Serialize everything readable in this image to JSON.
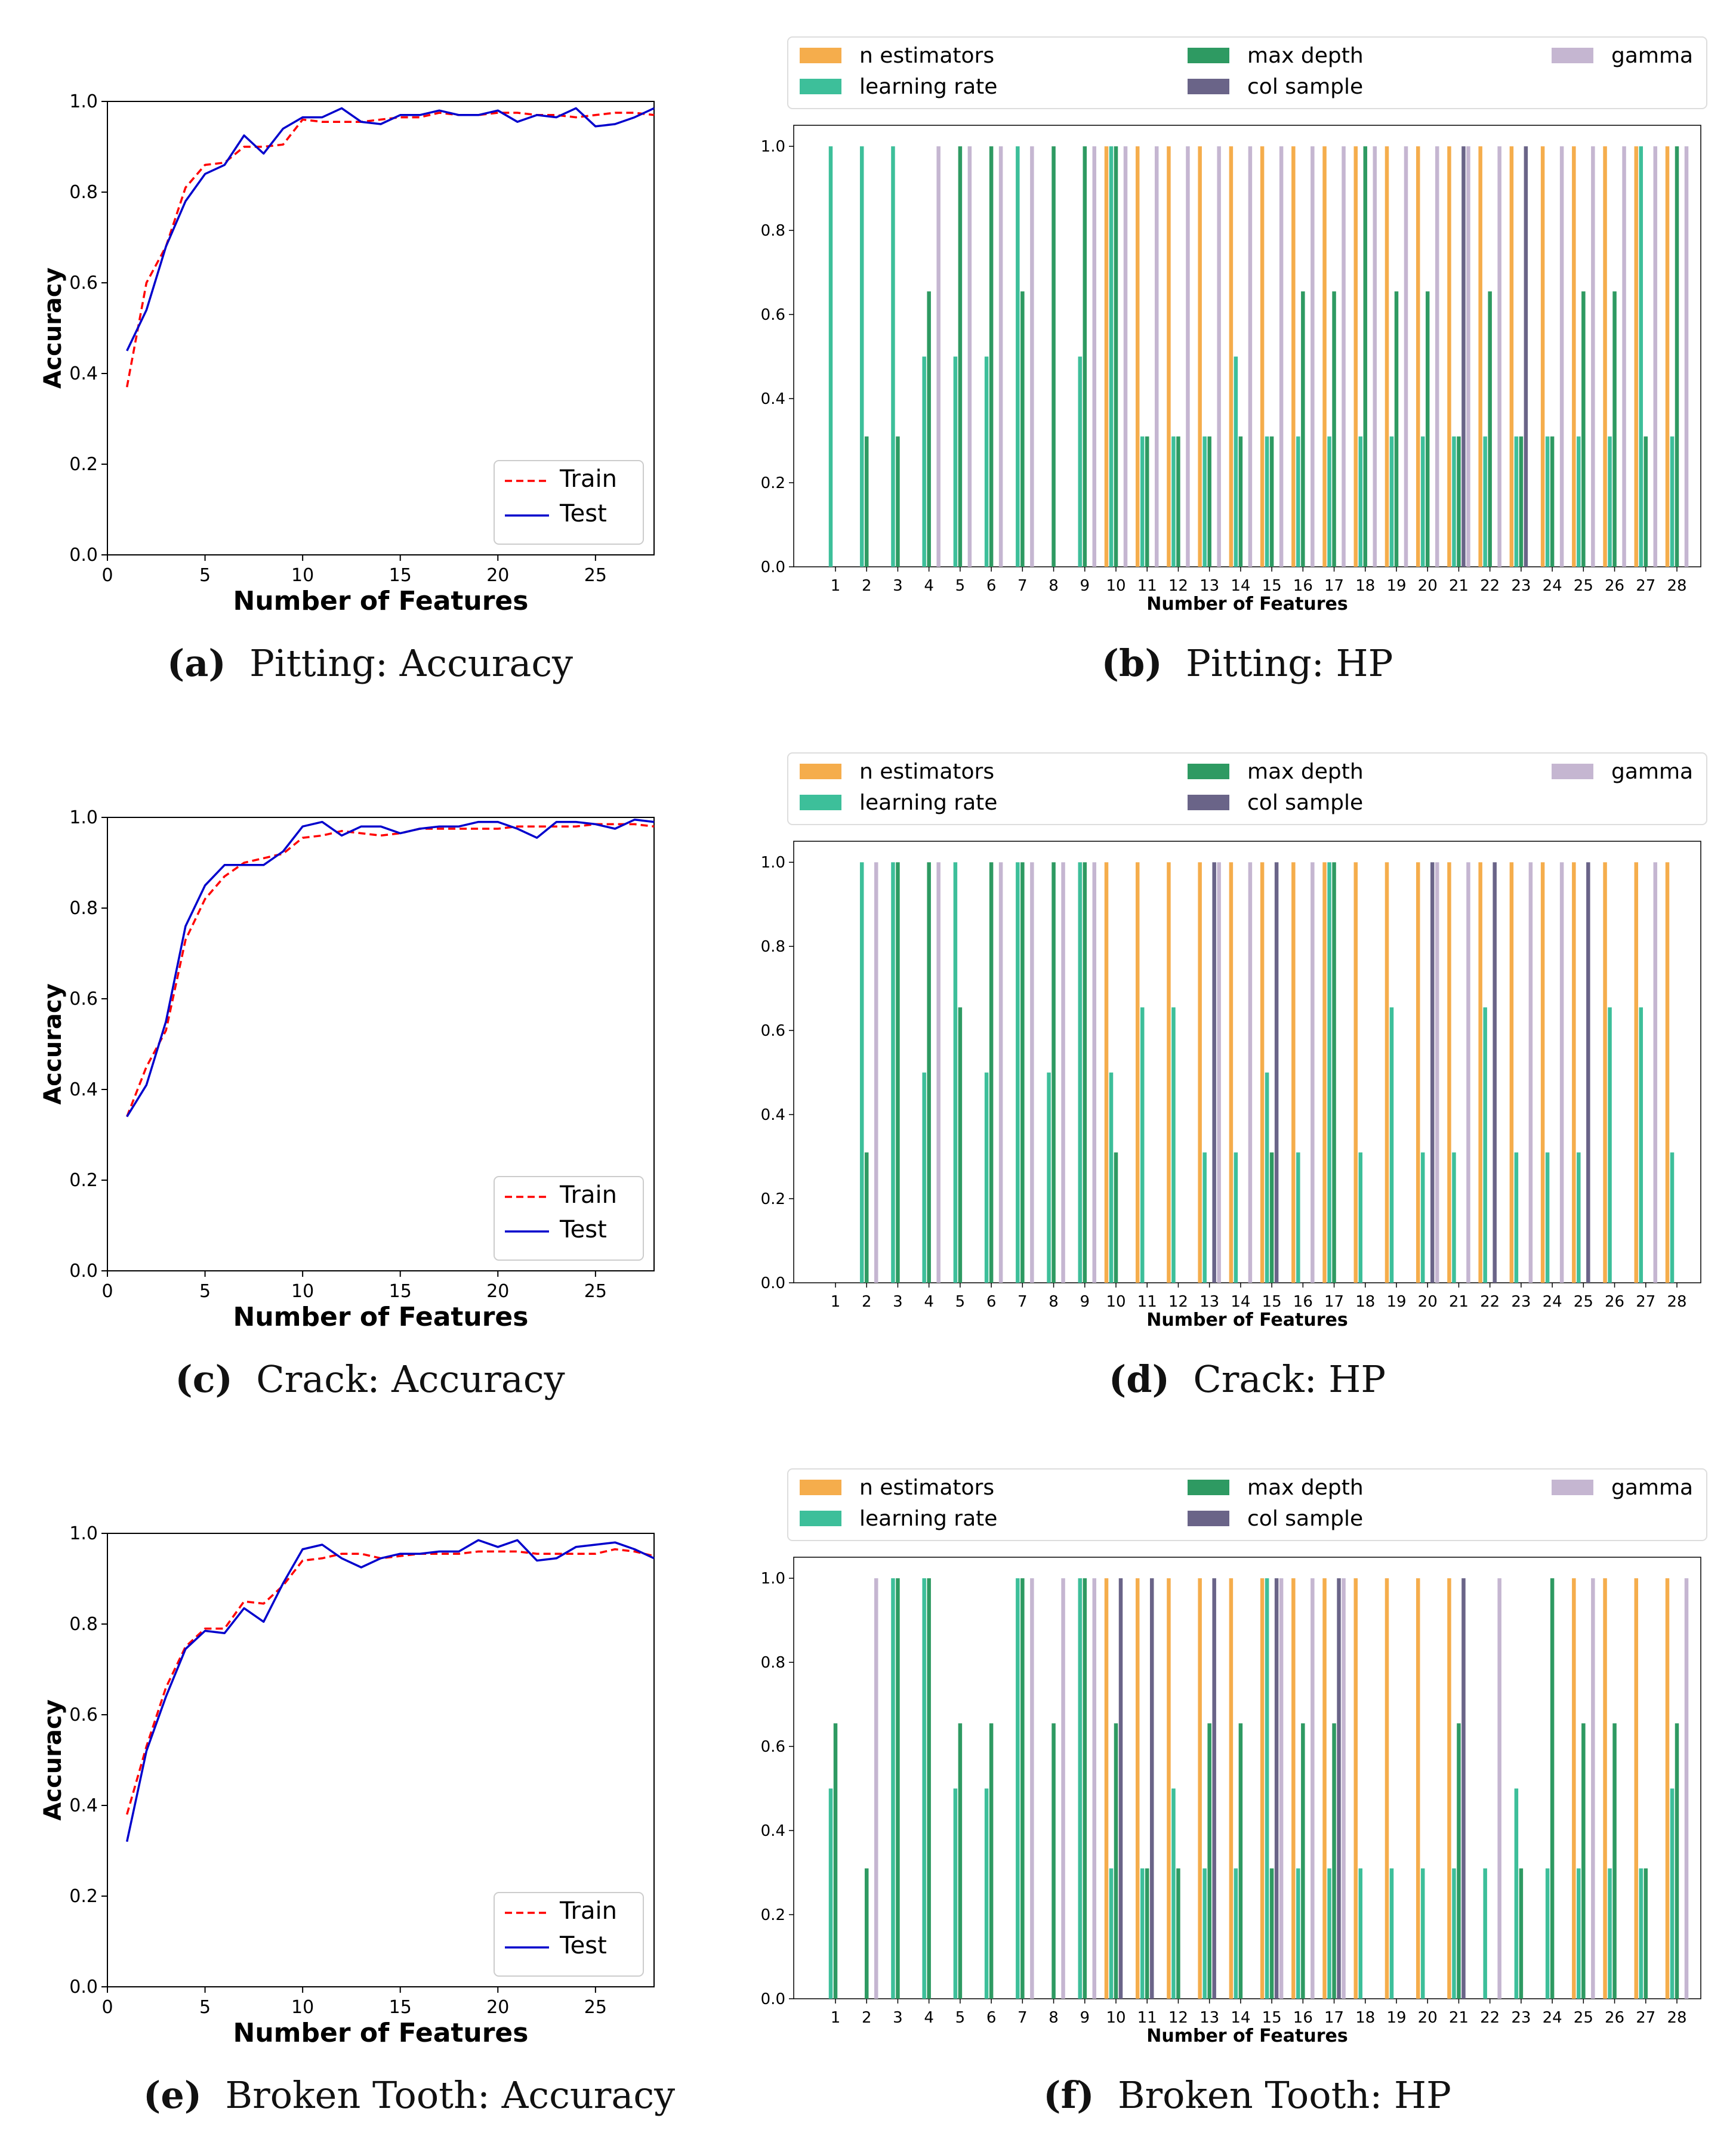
{
  "legend_labels": {
    "train": "Train",
    "test": "Test",
    "n_estimators": "n estimators",
    "learning_rate": "learning rate",
    "max_depth": "max depth",
    "col_sample": "col sample",
    "gamma": "gamma"
  },
  "colors": {
    "train": "#ff0000",
    "test": "#0000cc",
    "n_estimators": "#f5ad4c",
    "learning_rate": "#3dbf9a",
    "max_depth": "#2e9a62",
    "col_sample": "#6a6488",
    "gamma": "#c5b6d1"
  },
  "captions": [
    {
      "letter": "(a)",
      "text": "Pitting: Accuracy"
    },
    {
      "letter": "(b)",
      "text": "Pitting: HP"
    },
    {
      "letter": "(c)",
      "text": "Crack: Accuracy"
    },
    {
      "letter": "(d)",
      "text": "Crack: HP"
    },
    {
      "letter": "(e)",
      "text": "Broken Tooth: Accuracy"
    },
    {
      "letter": "(f)",
      "text": "Broken Tooth: HP"
    }
  ],
  "chart_data": [
    {
      "type": "line",
      "title": "Pitting: Accuracy",
      "xlabel": "Number of Features",
      "ylabel": "Accuracy",
      "xlim": [
        0,
        28
      ],
      "ylim": [
        0,
        1.0
      ],
      "xticks": [
        0,
        5,
        10,
        15,
        20,
        25
      ],
      "yticks": [
        0.0,
        0.2,
        0.4,
        0.6,
        0.8,
        1.0
      ],
      "x": [
        1,
        2,
        3,
        4,
        5,
        6,
        7,
        8,
        9,
        10,
        11,
        12,
        13,
        14,
        15,
        16,
        17,
        18,
        19,
        20,
        21,
        22,
        23,
        24,
        25,
        26,
        27,
        28
      ],
      "series": [
        {
          "name": "Train",
          "values": [
            0.37,
            0.6,
            0.68,
            0.81,
            0.86,
            0.865,
            0.9,
            0.9,
            0.905,
            0.96,
            0.955,
            0.955,
            0.955,
            0.96,
            0.965,
            0.965,
            0.975,
            0.97,
            0.97,
            0.975,
            0.975,
            0.97,
            0.97,
            0.965,
            0.97,
            0.975,
            0.975,
            0.97
          ]
        },
        {
          "name": "Test",
          "values": [
            0.45,
            0.54,
            0.68,
            0.78,
            0.84,
            0.86,
            0.925,
            0.885,
            0.94,
            0.965,
            0.965,
            0.985,
            0.955,
            0.95,
            0.97,
            0.97,
            0.98,
            0.97,
            0.97,
            0.98,
            0.955,
            0.97,
            0.965,
            0.985,
            0.945,
            0.95,
            0.965,
            0.985
          ]
        }
      ]
    },
    {
      "type": "bar",
      "title": "Pitting: HP",
      "xlabel": "Number of Features",
      "ylim": [
        0,
        1.05
      ],
      "yticks": [
        0.0,
        0.2,
        0.4,
        0.6,
        0.8,
        1.0
      ],
      "categories": [
        "1",
        "2",
        "3",
        "4",
        "5",
        "6",
        "7",
        "8",
        "9",
        "10",
        "11",
        "12",
        "13",
        "14",
        "15",
        "16",
        "17",
        "18",
        "19",
        "20",
        "21",
        "22",
        "23",
        "24",
        "25",
        "26",
        "27",
        "28"
      ],
      "series": [
        {
          "name": "n estimators",
          "values": [
            0,
            0,
            0,
            0,
            0,
            0,
            0,
            0,
            0,
            1,
            1,
            1,
            1,
            1,
            1,
            1,
            1,
            1,
            1,
            1,
            1,
            1,
            1,
            1,
            1,
            1,
            1,
            1
          ]
        },
        {
          "name": "learning rate",
          "values": [
            1,
            1,
            1,
            0.5,
            0.5,
            0.5,
            1,
            0,
            0.5,
            1,
            0.31,
            0.31,
            0.31,
            0.5,
            0.31,
            0.31,
            0.31,
            0.31,
            0.31,
            0.31,
            0.31,
            0.31,
            0.31,
            0.31,
            0.31,
            0.31,
            1,
            0.31
          ]
        },
        {
          "name": "max depth",
          "values": [
            0,
            0.31,
            0.31,
            0.655,
            1,
            1,
            0.655,
            1,
            1,
            1,
            0.31,
            0.31,
            0.31,
            0.31,
            0.31,
            0.655,
            0.655,
            1,
            0.655,
            0.655,
            0.31,
            0.655,
            0.31,
            0.31,
            0.655,
            0.655,
            0.31,
            1
          ]
        },
        {
          "name": "col sample",
          "values": [
            0,
            0,
            0,
            0,
            0,
            0,
            0,
            0,
            0,
            0,
            0,
            0,
            0,
            0,
            0,
            0,
            0,
            0,
            0,
            0,
            1,
            0,
            1,
            0,
            0,
            0,
            0,
            0
          ]
        },
        {
          "name": "gamma",
          "values": [
            0,
            0,
            0,
            1,
            1,
            1,
            1,
            0,
            1,
            1,
            1,
            1,
            1,
            1,
            1,
            1,
            1,
            1,
            1,
            1,
            1,
            1,
            0,
            1,
            1,
            1,
            1,
            1
          ]
        }
      ]
    },
    {
      "type": "line",
      "title": "Crack: Accuracy",
      "xlabel": "Number of Features",
      "ylabel": "Accuracy",
      "xlim": [
        0,
        28
      ],
      "ylim": [
        0,
        1.0
      ],
      "xticks": [
        0,
        5,
        10,
        15,
        20,
        25
      ],
      "yticks": [
        0.0,
        0.2,
        0.4,
        0.6,
        0.8,
        1.0
      ],
      "x": [
        1,
        2,
        3,
        4,
        5,
        6,
        7,
        8,
        9,
        10,
        11,
        12,
        13,
        14,
        15,
        16,
        17,
        18,
        19,
        20,
        21,
        22,
        23,
        24,
        25,
        26,
        27,
        28
      ],
      "series": [
        {
          "name": "Train",
          "values": [
            0.34,
            0.45,
            0.53,
            0.73,
            0.82,
            0.87,
            0.9,
            0.91,
            0.92,
            0.955,
            0.96,
            0.97,
            0.965,
            0.96,
            0.965,
            0.975,
            0.975,
            0.975,
            0.975,
            0.975,
            0.98,
            0.98,
            0.98,
            0.98,
            0.985,
            0.985,
            0.985,
            0.98
          ]
        },
        {
          "name": "Test",
          "values": [
            0.34,
            0.41,
            0.55,
            0.76,
            0.85,
            0.895,
            0.895,
            0.895,
            0.925,
            0.98,
            0.99,
            0.96,
            0.98,
            0.98,
            0.965,
            0.975,
            0.98,
            0.98,
            0.99,
            0.99,
            0.975,
            0.955,
            0.99,
            0.99,
            0.985,
            0.975,
            0.995,
            0.99
          ]
        }
      ]
    },
    {
      "type": "bar",
      "title": "Crack: HP",
      "xlabel": "Number of Features",
      "ylim": [
        0,
        1.05
      ],
      "yticks": [
        0.0,
        0.2,
        0.4,
        0.6,
        0.8,
        1.0
      ],
      "categories": [
        "1",
        "2",
        "3",
        "4",
        "5",
        "6",
        "7",
        "8",
        "9",
        "10",
        "11",
        "12",
        "13",
        "14",
        "15",
        "16",
        "17",
        "18",
        "19",
        "20",
        "21",
        "22",
        "23",
        "24",
        "25",
        "26",
        "27",
        "28"
      ],
      "series": [
        {
          "name": "n estimators",
          "values": [
            0,
            0,
            0,
            0,
            0,
            0,
            0,
            0,
            0,
            1,
            1,
            1,
            1,
            1,
            1,
            1,
            1,
            1,
            1,
            1,
            1,
            1,
            1,
            1,
            1,
            1,
            1,
            1
          ]
        },
        {
          "name": "learning rate",
          "values": [
            0,
            1,
            1,
            0.5,
            1,
            0.5,
            1,
            0.5,
            1,
            0.5,
            0.655,
            0.655,
            0.31,
            0.31,
            0.5,
            0.31,
            1,
            0.31,
            0.655,
            0.31,
            0.31,
            0.655,
            0.31,
            0.31,
            0.31,
            0.655,
            0.655,
            0.31
          ]
        },
        {
          "name": "max depth",
          "values": [
            0,
            0.31,
            1,
            1,
            0.655,
            1,
            1,
            1,
            1,
            0.31,
            0,
            0,
            0,
            0,
            0.31,
            0,
            1,
            0,
            0,
            0,
            0,
            0,
            0,
            0,
            0,
            0,
            0,
            0
          ]
        },
        {
          "name": "col sample",
          "values": [
            0,
            0,
            0,
            0,
            0,
            0,
            0,
            0,
            0,
            0,
            0,
            0,
            1,
            0,
            1,
            0,
            0,
            0,
            0,
            1,
            0,
            1,
            0,
            0,
            1,
            0,
            0,
            0
          ]
        },
        {
          "name": "gamma",
          "values": [
            0,
            1,
            0,
            1,
            0,
            1,
            1,
            1,
            1,
            0,
            0,
            0,
            1,
            1,
            0,
            1,
            0,
            0,
            0,
            1,
            1,
            0,
            1,
            1,
            0,
            0,
            1,
            0
          ]
        }
      ]
    },
    {
      "type": "line",
      "title": "Broken Tooth: Accuracy",
      "xlabel": "Number of Features",
      "ylabel": "Accuracy",
      "xlim": [
        0,
        28
      ],
      "ylim": [
        0,
        1.0
      ],
      "xticks": [
        0,
        5,
        10,
        15,
        20,
        25
      ],
      "yticks": [
        0.0,
        0.2,
        0.4,
        0.6,
        0.8,
        1.0
      ],
      "x": [
        1,
        2,
        3,
        4,
        5,
        6,
        7,
        8,
        9,
        10,
        11,
        12,
        13,
        14,
        15,
        16,
        17,
        18,
        19,
        20,
        21,
        22,
        23,
        24,
        25,
        26,
        27,
        28
      ],
      "series": [
        {
          "name": "Train",
          "values": [
            0.38,
            0.53,
            0.66,
            0.75,
            0.79,
            0.79,
            0.85,
            0.845,
            0.885,
            0.94,
            0.945,
            0.955,
            0.955,
            0.945,
            0.95,
            0.955,
            0.955,
            0.955,
            0.96,
            0.96,
            0.96,
            0.955,
            0.955,
            0.955,
            0.955,
            0.965,
            0.96,
            0.95
          ]
        },
        {
          "name": "Test",
          "values": [
            0.32,
            0.52,
            0.64,
            0.745,
            0.785,
            0.78,
            0.835,
            0.805,
            0.89,
            0.965,
            0.975,
            0.945,
            0.925,
            0.945,
            0.955,
            0.955,
            0.96,
            0.96,
            0.985,
            0.97,
            0.985,
            0.94,
            0.945,
            0.97,
            0.975,
            0.98,
            0.965,
            0.945
          ]
        }
      ]
    },
    {
      "type": "bar",
      "title": "Broken Tooth: HP",
      "xlabel": "Number of Features",
      "ylim": [
        0,
        1.05
      ],
      "yticks": [
        0.0,
        0.2,
        0.4,
        0.6,
        0.8,
        1.0
      ],
      "categories": [
        "1",
        "2",
        "3",
        "4",
        "5",
        "6",
        "7",
        "8",
        "9",
        "10",
        "11",
        "12",
        "13",
        "14",
        "15",
        "16",
        "17",
        "18",
        "19",
        "20",
        "21",
        "22",
        "23",
        "24",
        "25",
        "26",
        "27",
        "28"
      ],
      "series": [
        {
          "name": "n estimators",
          "values": [
            0,
            0,
            0,
            0,
            0,
            0,
            0,
            0,
            0,
            1,
            1,
            1,
            1,
            1,
            1,
            1,
            1,
            1,
            1,
            1,
            1,
            0,
            0,
            0,
            1,
            1,
            1,
            1
          ]
        },
        {
          "name": "learning rate",
          "values": [
            0.5,
            0,
            1,
            1,
            0.5,
            0.5,
            1,
            0,
            1,
            0.31,
            0.31,
            0.5,
            0.31,
            0.31,
            1,
            0.31,
            0.31,
            0.31,
            0.31,
            0.31,
            0.31,
            0.31,
            0.5,
            0.31,
            0.31,
            0.31,
            0.31,
            0.5
          ]
        },
        {
          "name": "max depth",
          "values": [
            0.655,
            0.31,
            1,
            1,
            0.655,
            0.655,
            1,
            0.655,
            1,
            0.655,
            0.31,
            0.31,
            0.655,
            0.655,
            0.31,
            0.655,
            0.655,
            0,
            0,
            0,
            0.655,
            0,
            0.31,
            1,
            0.655,
            0.655,
            0.31,
            0.655
          ]
        },
        {
          "name": "col sample",
          "values": [
            0,
            0,
            0,
            0,
            0,
            0,
            0,
            0,
            0,
            1,
            1,
            0,
            1,
            0,
            1,
            0,
            1,
            0,
            0,
            0,
            1,
            0,
            0,
            0,
            0,
            0,
            0,
            0
          ]
        },
        {
          "name": "gamma",
          "values": [
            0,
            1,
            0,
            0,
            0,
            0,
            1,
            1,
            1,
            0,
            0,
            0,
            0,
            0,
            1,
            1,
            1,
            0,
            0,
            0,
            0,
            1,
            0,
            0,
            1,
            0,
            0,
            1
          ]
        }
      ]
    }
  ]
}
